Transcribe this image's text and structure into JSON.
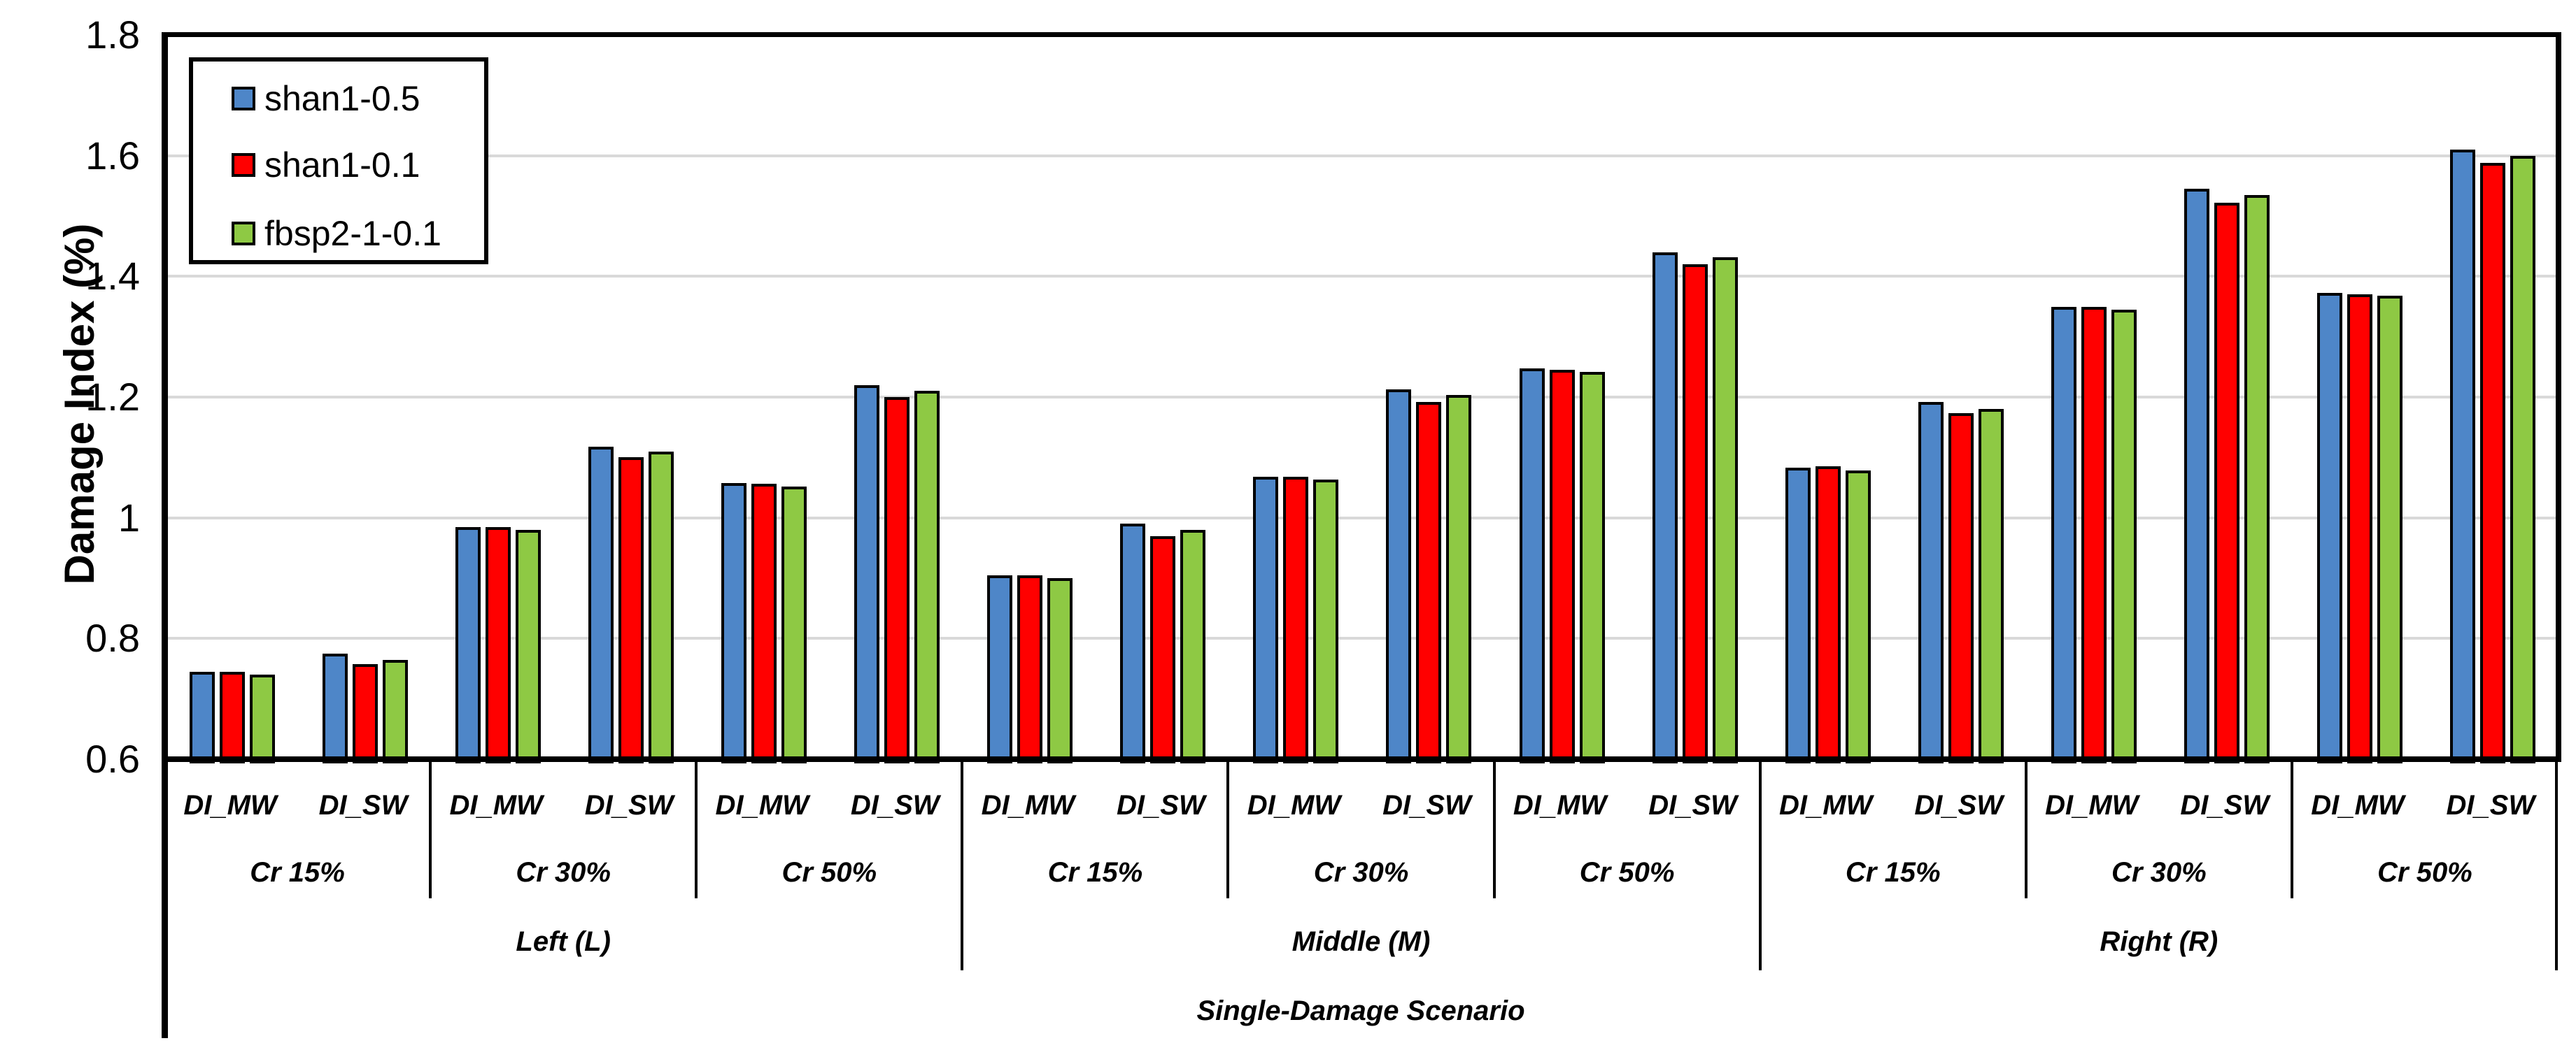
{
  "chart_data": {
    "type": "bar",
    "title": "",
    "ylabel": "Damage Index (%)",
    "xlabel": "Single-Damage Scenario",
    "ylim": [
      0.6,
      1.8
    ],
    "yticks": [
      0.6,
      0.8,
      1.0,
      1.2,
      1.4,
      1.6,
      1.8
    ],
    "ytick_labels": [
      "0.6",
      "0.8",
      "1",
      "1.2",
      "1.4",
      "1.6",
      "1.8"
    ],
    "grid": true,
    "grid_color": "#D9D9D9",
    "axis_color": "#000000",
    "legend_position": "top-left",
    "series": [
      {
        "name": "shan1-0.5",
        "color": "#4E86C8"
      },
      {
        "name": "shan1-0.1",
        "color": "#FF0000"
      },
      {
        "name": "fbsp2-1-0.1",
        "color": "#8EC944"
      }
    ],
    "scenario_label": "Single-Damage Scenario",
    "positions": [
      {
        "label": "Left (L)",
        "cracks": [
          {
            "label": "Cr 15%",
            "groups": [
              {
                "label": "DI_MW",
                "values": [
                  0.745,
                  0.745,
                  0.74
                ]
              },
              {
                "label": "DI_SW",
                "values": [
                  0.775,
                  0.757,
                  0.765
                ]
              }
            ]
          },
          {
            "label": "Cr 30%",
            "groups": [
              {
                "label": "DI_MW",
                "values": [
                  0.985,
                  0.985,
                  0.98
                ]
              },
              {
                "label": "DI_SW",
                "values": [
                  1.118,
                  1.1,
                  1.11
                ]
              }
            ]
          },
          {
            "label": "Cr 50%",
            "groups": [
              {
                "label": "DI_MW",
                "values": [
                  1.058,
                  1.056,
                  1.052
                ]
              },
              {
                "label": "DI_SW",
                "values": [
                  1.22,
                  1.2,
                  1.21
                ]
              }
            ]
          }
        ]
      },
      {
        "label": "Middle (M)",
        "cracks": [
          {
            "label": "Cr 15%",
            "groups": [
              {
                "label": "DI_MW",
                "values": [
                  0.905,
                  0.905,
                  0.9
                ]
              },
              {
                "label": "DI_SW",
                "values": [
                  0.99,
                  0.97,
                  0.98
                ]
              }
            ]
          },
          {
            "label": "Cr 30%",
            "groups": [
              {
                "label": "DI_MW",
                "values": [
                  1.068,
                  1.068,
                  1.063
                ]
              },
              {
                "label": "DI_SW",
                "values": [
                  1.213,
                  1.192,
                  1.203
                ]
              }
            ]
          },
          {
            "label": "Cr 50%",
            "groups": [
              {
                "label": "DI_MW",
                "values": [
                  1.247,
                  1.245,
                  1.242
                ]
              },
              {
                "label": "DI_SW",
                "values": [
                  1.44,
                  1.42,
                  1.432
                ]
              }
            ]
          }
        ]
      },
      {
        "label": "Right (R)",
        "cracks": [
          {
            "label": "Cr 15%",
            "groups": [
              {
                "label": "DI_MW",
                "values": [
                  1.083,
                  1.085,
                  1.078
                ]
              },
              {
                "label": "DI_SW",
                "values": [
                  1.192,
                  1.173,
                  1.18
                ]
              }
            ]
          },
          {
            "label": "Cr 30%",
            "groups": [
              {
                "label": "DI_MW",
                "values": [
                  1.35,
                  1.35,
                  1.345
                ]
              },
              {
                "label": "DI_SW",
                "values": [
                  1.545,
                  1.522,
                  1.535
                ]
              }
            ]
          },
          {
            "label": "Cr 50%",
            "groups": [
              {
                "label": "DI_MW",
                "values": [
                  1.373,
                  1.37,
                  1.368
                ]
              },
              {
                "label": "DI_SW",
                "values": [
                  1.61,
                  1.588,
                  1.6
                ]
              }
            ]
          }
        ]
      }
    ]
  }
}
